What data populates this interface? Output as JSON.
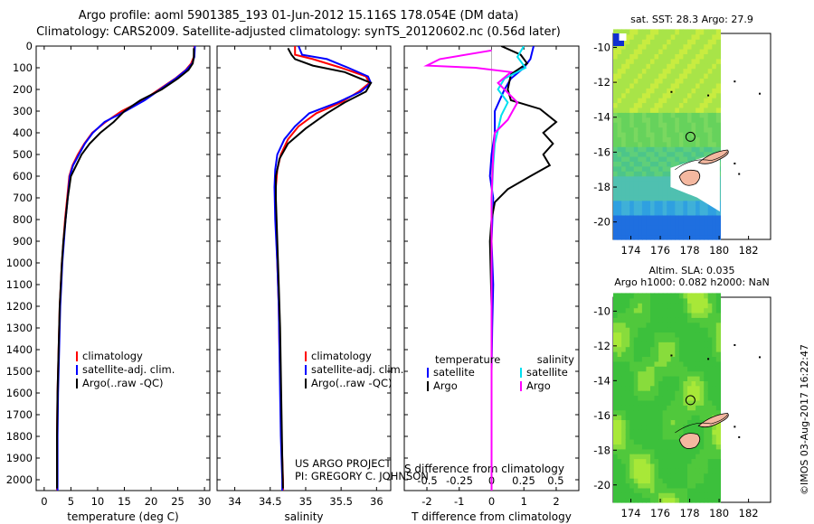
{
  "title_line1": "Argo profile: aoml 5901385_193 01-Jun-2012 15.116S 178.054E (DM data)",
  "title_line2": "Climatology: CARS2009. Satellite-adjusted climatology: synTS_20120602.nc (0.56d later)",
  "credit_line1": "US ARGO PROJECT",
  "credit_line2": "PI: GREGORY C. JOHNSON",
  "side_text": "©IMOS 03-Aug-2017 16:22:47",
  "colors": {
    "climatology": "#ff0000",
    "satellite": "#0000ff",
    "argo": "#000000",
    "salinity_satellite": "#00e0f0",
    "salinity_argo": "#ff00ff"
  },
  "chart_data": [
    {
      "type": "line",
      "xlabel": "temperature (deg C)",
      "ylabel": "",
      "xlim": [
        -1.5,
        31
      ],
      "ylim": [
        2050,
        0
      ],
      "xticks": [
        0,
        5,
        10,
        15,
        20,
        25,
        30
      ],
      "yticks": [
        0,
        100,
        200,
        300,
        400,
        500,
        600,
        700,
        800,
        900,
        1000,
        1100,
        1200,
        1300,
        1400,
        1500,
        1600,
        1700,
        1800,
        1900,
        2000
      ],
      "legend": [
        "climatology",
        "satellite-adj. clim.",
        "Argo(..raw -QC)"
      ],
      "series": [
        {
          "name": "climatology",
          "color": "#ff0000",
          "x": [
            28.1,
            28.0,
            27.5,
            26.5,
            24.5,
            21.5,
            18.5,
            14.5,
            11.5,
            9.0,
            7.5,
            6.3,
            5.3,
            4.7,
            4.3,
            3.9,
            3.6,
            3.3,
            3.1,
            2.9,
            2.8,
            2.7,
            2.6,
            2.5,
            2.4,
            2.4
          ],
          "y": [
            0,
            50,
            80,
            110,
            150,
            200,
            250,
            300,
            350,
            400,
            450,
            500,
            550,
            600,
            700,
            800,
            900,
            1000,
            1100,
            1200,
            1300,
            1400,
            1500,
            1600,
            1800,
            2050
          ]
        },
        {
          "name": "satellite-adj. clim.",
          "color": "#0000ff",
          "x": [
            28.2,
            28.1,
            27.7,
            26.6,
            24.6,
            21.7,
            18.8,
            15.2,
            11.3,
            9.1,
            7.6,
            6.5,
            5.4,
            4.8,
            4.4,
            4.0,
            3.7,
            3.4,
            3.2,
            3.0,
            2.9,
            2.8,
            2.7,
            2.6,
            2.5,
            2.5
          ],
          "y": [
            0,
            50,
            80,
            110,
            150,
            200,
            250,
            300,
            350,
            400,
            450,
            500,
            550,
            600,
            700,
            800,
            900,
            1000,
            1100,
            1200,
            1300,
            1400,
            1500,
            1600,
            1800,
            2050
          ]
        },
        {
          "name": "Argo(..raw -QC)",
          "color": "#000000",
          "x": [
            28.0,
            28.0,
            27.8,
            27.0,
            25.0,
            22.0,
            18.0,
            15.0,
            13.0,
            10.5,
            8.5,
            7.0,
            6.0,
            5.0,
            4.4,
            4.0,
            3.6,
            3.3,
            3.1,
            2.9,
            2.8,
            2.7,
            2.6,
            2.5,
            2.4,
            2.4
          ],
          "y": [
            10,
            50,
            80,
            110,
            150,
            200,
            250,
            300,
            350,
            400,
            450,
            500,
            550,
            600,
            700,
            800,
            900,
            1000,
            1100,
            1200,
            1300,
            1400,
            1500,
            1600,
            1800,
            2040
          ]
        }
      ]
    },
    {
      "type": "line",
      "xlabel": "salinity",
      "ylabel": "",
      "xlim": [
        33.75,
        36.2
      ],
      "ylim": [
        2050,
        0
      ],
      "xticks": [
        34,
        34.5,
        35,
        35.5,
        36
      ],
      "xtick_labels": [
        "34",
        "34.5",
        "35",
        "35.5",
        "36"
      ],
      "legend": [
        "climatology",
        "satellite-adj. clim.",
        "Argo(..raw -QC)"
      ],
      "series": [
        {
          "name": "climatology",
          "color": "#ff0000",
          "x": [
            34.85,
            34.85,
            35.1,
            35.5,
            35.85,
            35.9,
            35.75,
            35.5,
            35.15,
            34.9,
            34.75,
            34.65,
            34.6,
            34.58,
            34.58,
            34.6,
            34.62,
            34.63,
            34.65,
            34.66,
            34.67,
            34.68,
            34.68
          ],
          "y": [
            0,
            40,
            60,
            100,
            140,
            170,
            210,
            260,
            310,
            370,
            430,
            500,
            570,
            650,
            800,
            1000,
            1200,
            1400,
            1600,
            1800,
            1900,
            2000,
            2050
          ]
        },
        {
          "name": "satellite-adj. clim.",
          "color": "#0000ff",
          "x": [
            34.9,
            34.95,
            35.3,
            35.6,
            35.88,
            35.92,
            35.78,
            35.45,
            35.05,
            34.85,
            34.7,
            34.6,
            34.57,
            34.56,
            34.57,
            34.6,
            34.62,
            34.63,
            34.64,
            34.65,
            34.66,
            34.67,
            34.67
          ],
          "y": [
            0,
            40,
            60,
            100,
            140,
            170,
            210,
            260,
            310,
            370,
            430,
            500,
            570,
            650,
            800,
            1000,
            1200,
            1400,
            1600,
            1800,
            1900,
            2000,
            2050
          ]
        },
        {
          "name": "Argo(..raw -QC)",
          "color": "#000000",
          "x": [
            34.75,
            34.8,
            34.85,
            35.1,
            35.55,
            35.92,
            35.85,
            35.55,
            35.3,
            35.0,
            34.75,
            34.63,
            34.58,
            34.58,
            34.6,
            34.62,
            34.64,
            34.65,
            34.66,
            34.67,
            34.68
          ],
          "y": [
            10,
            40,
            60,
            90,
            120,
            170,
            210,
            260,
            310,
            380,
            450,
            520,
            600,
            700,
            900,
            1100,
            1300,
            1500,
            1700,
            1900,
            2040
          ]
        }
      ]
    },
    {
      "type": "line",
      "xlabel": "T difference from climatology",
      "xlabel_top": "S difference from climatology",
      "ylabel": "",
      "xlim": [
        -2.7,
        2.7
      ],
      "ylim": [
        2050,
        0
      ],
      "xticks": [
        -2,
        -1,
        0,
        1,
        2
      ],
      "xticks_top": [
        -0.5,
        -0.25,
        0,
        0.25,
        0.5
      ],
      "xtick_labels_top": [
        "-0.5",
        "-0.25",
        "0",
        "0.25",
        "0.5"
      ],
      "legend_left_title": "temperature",
      "legend_right_title": "salinity",
      "legend_left": [
        "satellite",
        "Argo"
      ],
      "legend_right": [
        "satellite",
        "Argo"
      ],
      "series": [
        {
          "name": "satellite",
          "color": "#0000ff",
          "x": [
            1.3,
            1.2,
            1.0,
            0.6,
            0.4,
            0.1,
            0.1,
            0.0,
            -0.05,
            0.05,
            0.0,
            0.05,
            0.02,
            0.0,
            0.0,
            0.0
          ],
          "y": [
            0,
            60,
            100,
            150,
            200,
            300,
            400,
            500,
            600,
            700,
            900,
            1100,
            1300,
            1500,
            1800,
            2050
          ]
        },
        {
          "name": "Argo",
          "color": "#000000",
          "x": [
            0.3,
            0.9,
            1.1,
            0.6,
            0.5,
            0.6,
            1.5,
            2.0,
            1.6,
            1.9,
            1.6,
            1.8,
            1.2,
            0.5,
            0.1,
            0.0,
            -0.05,
            0.0,
            0.0,
            0.0
          ],
          "y": [
            0,
            40,
            80,
            130,
            200,
            250,
            290,
            350,
            400,
            450,
            500,
            550,
            600,
            660,
            720,
            800,
            900,
            1200,
            1600,
            2050
          ]
        },
        {
          "name": "satellite",
          "color": "#00e0f0",
          "x": [
            1.0,
            0.8,
            1.05,
            0.4,
            0.2,
            0.5,
            0.3,
            0.1,
            0.05,
            0.02,
            0.0,
            0.0,
            0.0,
            0.0
          ],
          "y": [
            0,
            50,
            100,
            150,
            200,
            260,
            320,
            450,
            550,
            650,
            800,
            1200,
            1600,
            2050
          ]
        },
        {
          "name": "Argo",
          "color": "#ff00ff",
          "x": [
            0.0,
            -1.6,
            -2.0,
            -0.5,
            0.6,
            0.2,
            0.8,
            0.5,
            0.1,
            0.05,
            0.0,
            0.0
          ],
          "y": [
            20,
            60,
            90,
            100,
            120,
            170,
            260,
            340,
            400,
            500,
            700,
            2050
          ]
        }
      ]
    },
    {
      "type": "heatmap",
      "title": "sat. SST: 28.3  Argo: 27.9",
      "xticks": [
        174,
        176,
        178,
        180,
        182
      ],
      "yticks": [
        -10,
        -12,
        -14,
        -16,
        -18,
        -20
      ],
      "xlim": [
        172.8,
        183.5
      ],
      "ylim": [
        -21,
        -9.2
      ],
      "argo_position": [
        178.05,
        -15.12
      ]
    },
    {
      "type": "heatmap",
      "title_line1": "Altim. SLA: 0.035",
      "title_line2": "Argo h1000: 0.082 h2000: NaN",
      "xticks": [
        174,
        176,
        178,
        180,
        182
      ],
      "yticks": [
        -10,
        -12,
        -14,
        -16,
        -18,
        -20
      ],
      "xlim": [
        172.8,
        183.5
      ],
      "ylim": [
        -21,
        -9.2
      ],
      "argo_position": [
        178.05,
        -15.12
      ]
    }
  ]
}
